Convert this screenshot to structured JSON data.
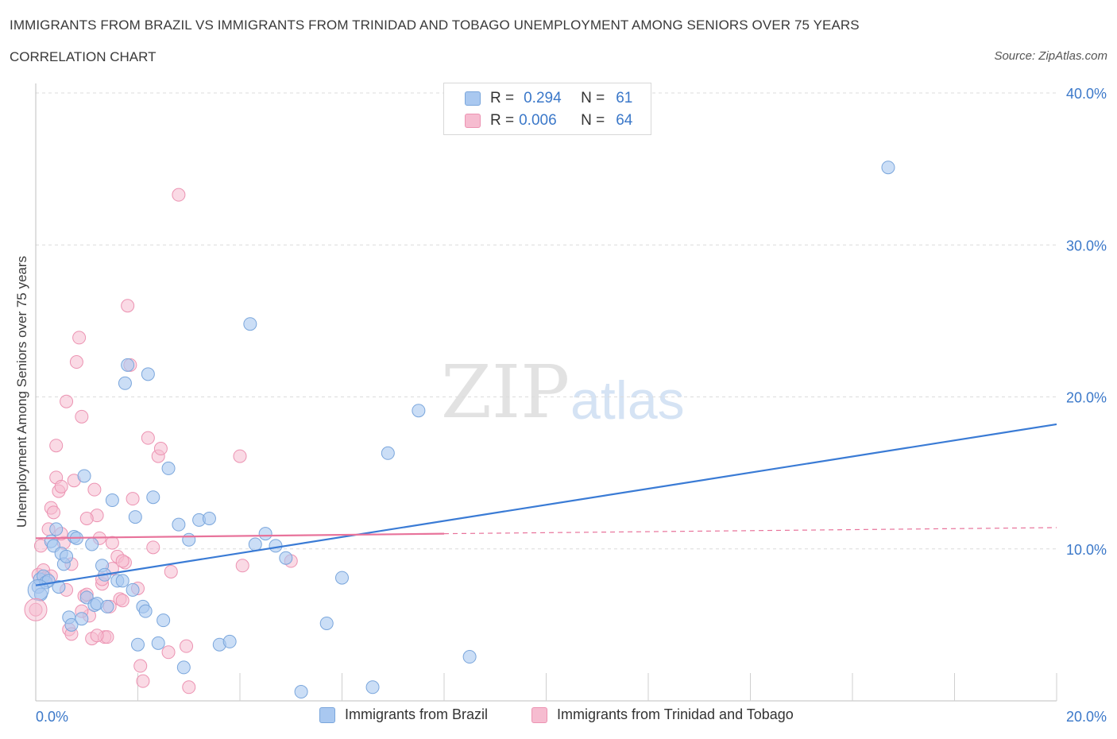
{
  "header": {
    "title": "IMMIGRANTS FROM BRAZIL VS IMMIGRANTS FROM TRINIDAD AND TOBAGO UNEMPLOYMENT AMONG SENIORS OVER 75 YEARS",
    "subtitle": "CORRELATION CHART",
    "source": "Source: ZipAtlas.com"
  },
  "watermark": {
    "zip": "ZIP",
    "atlas": "atlas"
  },
  "legend": {
    "rows": [
      {
        "r_label": "R =",
        "r_value": "0.294",
        "n_label": "N =",
        "n_value": "61"
      },
      {
        "r_label": "R =",
        "r_value": "0.006",
        "n_label": "N =",
        "n_value": "64"
      }
    ]
  },
  "colors": {
    "brazil_fill": "#a9c8f0",
    "brazil_stroke": "#7aa6dc",
    "brazil_line": "#3a7bd5",
    "tt_fill": "#f6bcd0",
    "tt_stroke": "#ec93b2",
    "tt_line": "#e8739b",
    "tick_text": "#3b78c9",
    "grid": "#dcdcdc"
  },
  "chart_data": {
    "type": "scatter",
    "title": "IMMIGRANTS FROM BRAZIL VS IMMIGRANTS FROM TRINIDAD AND TOBAGO UNEMPLOYMENT AMONG SENIORS OVER 75 YEARS",
    "xlabel": "",
    "ylabel": "Unemployment Among Seniors over 75 years",
    "xlim": [
      0,
      20
    ],
    "ylim": [
      0,
      40
    ],
    "x_tick_labels": [
      "0.0%",
      "20.0%"
    ],
    "y_tick_labels": [
      "10.0%",
      "20.0%",
      "30.0%",
      "40.0%"
    ],
    "y_ticks": [
      10,
      20,
      30,
      40
    ],
    "grid": true,
    "legend_position": "top-center",
    "series": [
      {
        "name": "Immigrants from Brazil",
        "points": [
          [
            0.05,
            7.5
          ],
          [
            0.08,
            8.0
          ],
          [
            0.1,
            7.0
          ],
          [
            0.15,
            8.2
          ],
          [
            0.2,
            7.8
          ],
          [
            0.25,
            7.9
          ],
          [
            0.3,
            10.5
          ],
          [
            0.35,
            10.2
          ],
          [
            0.4,
            11.3
          ],
          [
            0.45,
            7.5
          ],
          [
            0.5,
            9.7
          ],
          [
            0.55,
            9.0
          ],
          [
            0.6,
            9.5
          ],
          [
            0.65,
            5.5
          ],
          [
            0.7,
            5.0
          ],
          [
            0.75,
            10.8
          ],
          [
            0.8,
            10.7
          ],
          [
            0.9,
            5.4
          ],
          [
            0.95,
            14.8
          ],
          [
            1.0,
            6.8
          ],
          [
            1.1,
            10.3
          ],
          [
            1.15,
            6.3
          ],
          [
            1.2,
            6.4
          ],
          [
            1.3,
            8.9
          ],
          [
            1.35,
            8.3
          ],
          [
            1.4,
            6.2
          ],
          [
            1.5,
            13.2
          ],
          [
            1.6,
            7.9
          ],
          [
            1.7,
            7.9
          ],
          [
            1.75,
            20.9
          ],
          [
            1.8,
            22.1
          ],
          [
            1.9,
            7.3
          ],
          [
            1.95,
            12.1
          ],
          [
            2.0,
            3.7
          ],
          [
            2.1,
            6.2
          ],
          [
            2.15,
            5.9
          ],
          [
            2.2,
            21.5
          ],
          [
            2.3,
            13.4
          ],
          [
            2.4,
            3.8
          ],
          [
            2.5,
            5.3
          ],
          [
            2.6,
            15.3
          ],
          [
            2.8,
            11.6
          ],
          [
            2.9,
            2.2
          ],
          [
            3.0,
            10.6
          ],
          [
            3.2,
            11.9
          ],
          [
            3.4,
            12.0
          ],
          [
            3.6,
            3.7
          ],
          [
            3.8,
            3.9
          ],
          [
            4.2,
            24.8
          ],
          [
            4.3,
            10.3
          ],
          [
            4.5,
            11.0
          ],
          [
            4.7,
            10.2
          ],
          [
            4.9,
            9.4
          ],
          [
            5.2,
            0.6
          ],
          [
            5.7,
            5.1
          ],
          [
            6.0,
            8.1
          ],
          [
            6.6,
            0.9
          ],
          [
            6.9,
            16.3
          ],
          [
            7.5,
            19.1
          ],
          [
            8.5,
            2.9
          ],
          [
            16.7,
            35.1
          ]
        ],
        "trend": {
          "x": [
            0,
            20
          ],
          "y": [
            7.6,
            18.2
          ]
        }
      },
      {
        "name": "Immigrants from Trinidad and Tobago",
        "points": [
          [
            0.0,
            6.0
          ],
          [
            0.05,
            8.3
          ],
          [
            0.1,
            10.2
          ],
          [
            0.15,
            8.6
          ],
          [
            0.2,
            8.1
          ],
          [
            0.25,
            11.3
          ],
          [
            0.3,
            12.7
          ],
          [
            0.35,
            12.4
          ],
          [
            0.4,
            14.7
          ],
          [
            0.4,
            16.8
          ],
          [
            0.45,
            13.8
          ],
          [
            0.5,
            14.1
          ],
          [
            0.55,
            10.4
          ],
          [
            0.6,
            19.7
          ],
          [
            0.65,
            4.7
          ],
          [
            0.7,
            9.0
          ],
          [
            0.75,
            14.5
          ],
          [
            0.8,
            22.3
          ],
          [
            0.85,
            23.9
          ],
          [
            0.9,
            18.7
          ],
          [
            0.95,
            6.9
          ],
          [
            1.0,
            7.0
          ],
          [
            1.05,
            5.6
          ],
          [
            1.1,
            4.1
          ],
          [
            1.15,
            13.9
          ],
          [
            1.2,
            12.2
          ],
          [
            1.25,
            10.7
          ],
          [
            1.3,
            7.7
          ],
          [
            1.35,
            4.2
          ],
          [
            1.4,
            4.2
          ],
          [
            1.45,
            6.2
          ],
          [
            1.5,
            8.7
          ],
          [
            1.6,
            9.5
          ],
          [
            1.65,
            6.7
          ],
          [
            1.7,
            6.6
          ],
          [
            1.75,
            9.1
          ],
          [
            1.8,
            26.0
          ],
          [
            1.85,
            22.1
          ],
          [
            1.9,
            13.3
          ],
          [
            2.0,
            7.4
          ],
          [
            2.05,
            2.3
          ],
          [
            2.1,
            1.3
          ],
          [
            2.2,
            17.3
          ],
          [
            2.3,
            10.1
          ],
          [
            2.4,
            16.1
          ],
          [
            2.45,
            16.6
          ],
          [
            2.6,
            3.2
          ],
          [
            2.65,
            8.5
          ],
          [
            2.8,
            33.3
          ],
          [
            2.95,
            3.6
          ],
          [
            3.0,
            0.9
          ],
          [
            4.0,
            16.1
          ],
          [
            4.05,
            8.9
          ],
          [
            5.0,
            9.2
          ],
          [
            0.3,
            8.2
          ],
          [
            0.5,
            11.0
          ],
          [
            0.6,
            7.3
          ],
          [
            0.7,
            4.4
          ],
          [
            0.9,
            5.9
          ],
          [
            1.0,
            12.0
          ],
          [
            1.2,
            4.3
          ],
          [
            1.3,
            8.0
          ],
          [
            1.5,
            10.4
          ],
          [
            1.7,
            9.2
          ]
        ],
        "trend": {
          "x": [
            0,
            8
          ],
          "y": [
            10.7,
            11.0
          ]
        },
        "trend_dashed": {
          "x": [
            8,
            20
          ],
          "y": [
            11.0,
            11.4
          ]
        }
      }
    ]
  },
  "bottom_legend": {
    "brazil": "Immigrants from Brazil",
    "tt": "Immigrants from Trinidad and Tobago"
  }
}
